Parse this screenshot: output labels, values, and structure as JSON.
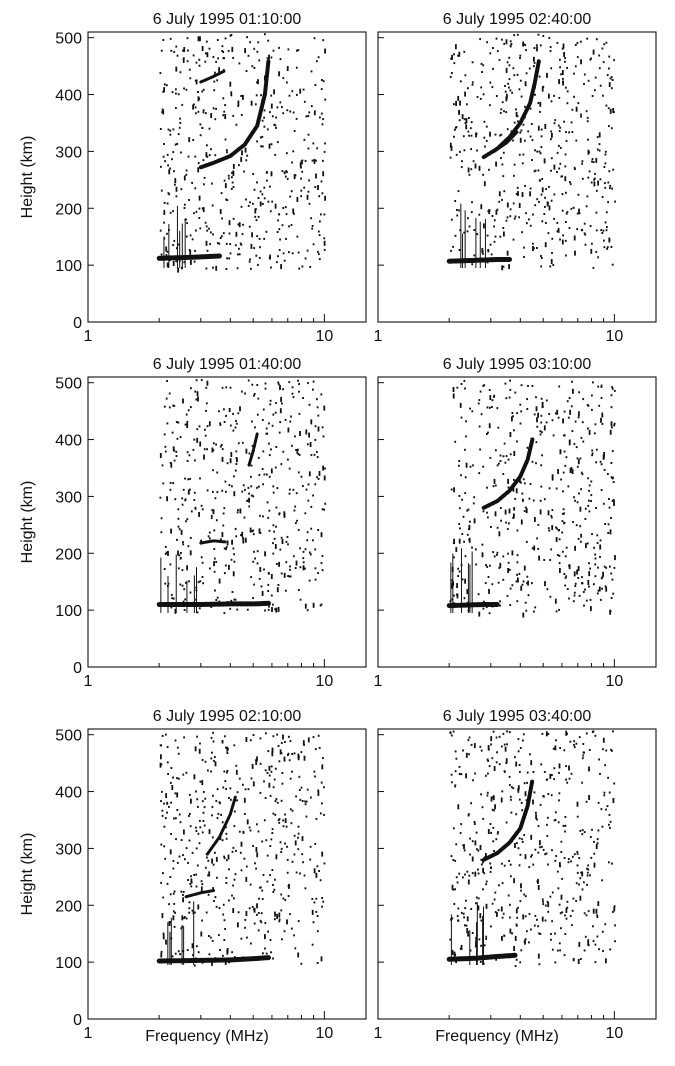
{
  "figure": {
    "xlabel": "Frequency (MHz)",
    "ylabel": "Height (km)"
  },
  "chart_data": [
    {
      "type": "scatter",
      "title": "6 July 1995    01:10:00",
      "xlabel": "",
      "ylabel": "Height (km)",
      "xscale": "log",
      "xlim": [
        1,
        15
      ],
      "ylim": [
        0,
        510
      ],
      "xticks": [
        "1",
        "10"
      ],
      "yticks": [
        "0",
        "100",
        "200",
        "300",
        "400",
        "500"
      ],
      "noise_band_mhz": [
        2.0,
        10.0
      ],
      "traces": [
        {
          "x": [
            2.0,
            2.4,
            2.8,
            3.2,
            3.6
          ],
          "y": [
            112,
            113,
            114,
            115,
            116
          ],
          "w": 5
        },
        {
          "x": [
            3.0,
            3.4,
            4.0,
            4.6,
            5.2,
            5.6,
            5.8
          ],
          "y": [
            272,
            280,
            292,
            312,
            345,
            400,
            460
          ],
          "w": 4
        },
        {
          "x": [
            3.0,
            3.4,
            3.8
          ],
          "y": [
            422,
            432,
            442
          ],
          "w": 3
        }
      ]
    },
    {
      "type": "scatter",
      "title": "6 July 1995    02:40:00",
      "xlabel": "",
      "ylabel": "",
      "xscale": "log",
      "xlim": [
        1,
        15
      ],
      "ylim": [
        0,
        510
      ],
      "xticks": [
        "1",
        "10"
      ],
      "yticks": [],
      "noise_band_mhz": [
        2.0,
        10.0
      ],
      "traces": [
        {
          "x": [
            2.0,
            2.4,
            2.8,
            3.2,
            3.6
          ],
          "y": [
            107,
            108,
            109,
            110,
            110
          ],
          "w": 5
        },
        {
          "x": [
            2.8,
            3.2,
            3.6,
            4.0,
            4.4,
            4.6,
            4.8
          ],
          "y": [
            290,
            305,
            325,
            350,
            385,
            420,
            460
          ],
          "w": 4
        },
        {
          "x": [
            3.1,
            3.5,
            3.9
          ],
          "y": [
            300,
            315,
            335
          ],
          "w": 3
        }
      ]
    },
    {
      "type": "scatter",
      "title": "6 July 1995    01:40:00",
      "xlabel": "",
      "ylabel": "Height (km)",
      "xscale": "log",
      "xlim": [
        1,
        15
      ],
      "ylim": [
        0,
        510
      ],
      "xticks": [
        "1",
        "10"
      ],
      "yticks": [
        "0",
        "100",
        "200",
        "300",
        "400",
        "500"
      ],
      "noise_band_mhz": [
        2.0,
        10.0
      ],
      "traces": [
        {
          "x": [
            2.0,
            3.0,
            4.0,
            5.0,
            5.8
          ],
          "y": [
            110,
            110,
            111,
            111,
            112
          ],
          "w": 5
        },
        {
          "x": [
            4.8,
            5.0,
            5.2
          ],
          "y": [
            355,
            380,
            410
          ],
          "w": 3
        },
        {
          "x": [
            3.0,
            3.4,
            3.8
          ],
          "y": [
            218,
            222,
            220
          ],
          "w": 3
        }
      ]
    },
    {
      "type": "scatter",
      "title": "6 July 1995    03:10:00",
      "xlabel": "",
      "ylabel": "",
      "xscale": "log",
      "xlim": [
        1,
        15
      ],
      "ylim": [
        0,
        510
      ],
      "xticks": [
        "1",
        "10"
      ],
      "yticks": [],
      "noise_band_mhz": [
        2.0,
        10.0
      ],
      "traces": [
        {
          "x": [
            2.0,
            2.4,
            2.8,
            3.2
          ],
          "y": [
            108,
            109,
            110,
            110
          ],
          "w": 5
        },
        {
          "x": [
            2.8,
            3.2,
            3.6,
            4.0,
            4.3,
            4.5
          ],
          "y": [
            280,
            292,
            310,
            335,
            365,
            400
          ],
          "w": 4
        }
      ]
    },
    {
      "type": "scatter",
      "title": "6 July 1995    02:10:00",
      "xlabel": "Frequency (MHz)",
      "ylabel": "Height (km)",
      "xscale": "log",
      "xlim": [
        1,
        15
      ],
      "ylim": [
        0,
        510
      ],
      "xticks": [
        "1",
        "10"
      ],
      "yticks": [
        "0",
        "100",
        "200",
        "300",
        "400",
        "500"
      ],
      "noise_band_mhz": [
        2.0,
        10.0
      ],
      "traces": [
        {
          "x": [
            2.0,
            3.0,
            4.0,
            5.0,
            5.8
          ],
          "y": [
            102,
            103,
            104,
            106,
            108
          ],
          "w": 5
        },
        {
          "x": [
            3.2,
            3.6,
            4.0,
            4.2
          ],
          "y": [
            290,
            320,
            360,
            390
          ],
          "w": 3
        },
        {
          "x": [
            2.6,
            3.0,
            3.4
          ],
          "y": [
            215,
            222,
            226
          ],
          "w": 3
        }
      ]
    },
    {
      "type": "scatter",
      "title": "6 July 1995    03:40:00",
      "xlabel": "Frequency (MHz)",
      "ylabel": "",
      "xscale": "log",
      "xlim": [
        1,
        15
      ],
      "ylim": [
        0,
        510
      ],
      "xticks": [
        "1",
        "10"
      ],
      "yticks": [],
      "noise_band_mhz": [
        2.0,
        10.0
      ],
      "traces": [
        {
          "x": [
            2.0,
            2.6,
            3.2,
            3.8
          ],
          "y": [
            105,
            107,
            110,
            112
          ],
          "w": 5
        },
        {
          "x": [
            2.8,
            3.2,
            3.6,
            4.0,
            4.3,
            4.5
          ],
          "y": [
            280,
            292,
            310,
            335,
            375,
            420
          ],
          "w": 4
        }
      ]
    }
  ]
}
